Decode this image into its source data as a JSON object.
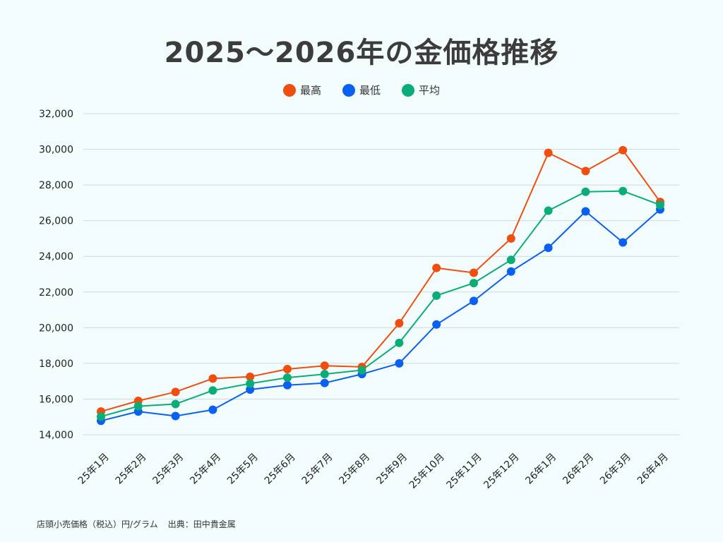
{
  "chart_data": {
    "type": "line",
    "title": "2025～2026年の金価格推移",
    "categories": [
      "25年1月",
      "25年2月",
      "25年3月",
      "25年4月",
      "25年5月",
      "25年6月",
      "25年7月",
      "25年8月",
      "25年9月",
      "25年10月",
      "25年11月",
      "25年12月",
      "26年1月",
      "26年2月",
      "26年3月",
      "26年4月"
    ],
    "series": [
      {
        "name": "最高",
        "color": "#f04e0f",
        "values": [
          15300,
          15900,
          16400,
          17150,
          17250,
          17680,
          17870,
          17800,
          20250,
          23350,
          23080,
          25000,
          29800,
          28780,
          29950,
          27050
        ]
      },
      {
        "name": "最低",
        "color": "#0a60f0",
        "values": [
          14780,
          15300,
          15050,
          15400,
          16530,
          16780,
          16900,
          17400,
          18000,
          20180,
          21500,
          23150,
          24480,
          26520,
          24780,
          26630
        ]
      },
      {
        "name": "平均",
        "color": "#0aad78",
        "values": [
          15020,
          15600,
          15720,
          16480,
          16870,
          17200,
          17400,
          17620,
          19150,
          21800,
          22500,
          23800,
          26560,
          27620,
          27660,
          26880
        ]
      }
    ],
    "ylim": [
      14000,
      32000
    ],
    "yticks": [
      14000,
      16000,
      18000,
      20000,
      22000,
      24000,
      26000,
      28000,
      30000,
      32000
    ],
    "ytick_labels": [
      "14,000",
      "16,000",
      "18,000",
      "20,000",
      "22,000",
      "24,000",
      "26,000",
      "28,000",
      "30,000",
      "32,000"
    ],
    "grid": true,
    "legend_position": "top-center",
    "xlabel": "",
    "ylabel": ""
  },
  "footer": {
    "note": "店頭小売価格（税込）円/グラム",
    "source": "出典：田中貴金属"
  }
}
